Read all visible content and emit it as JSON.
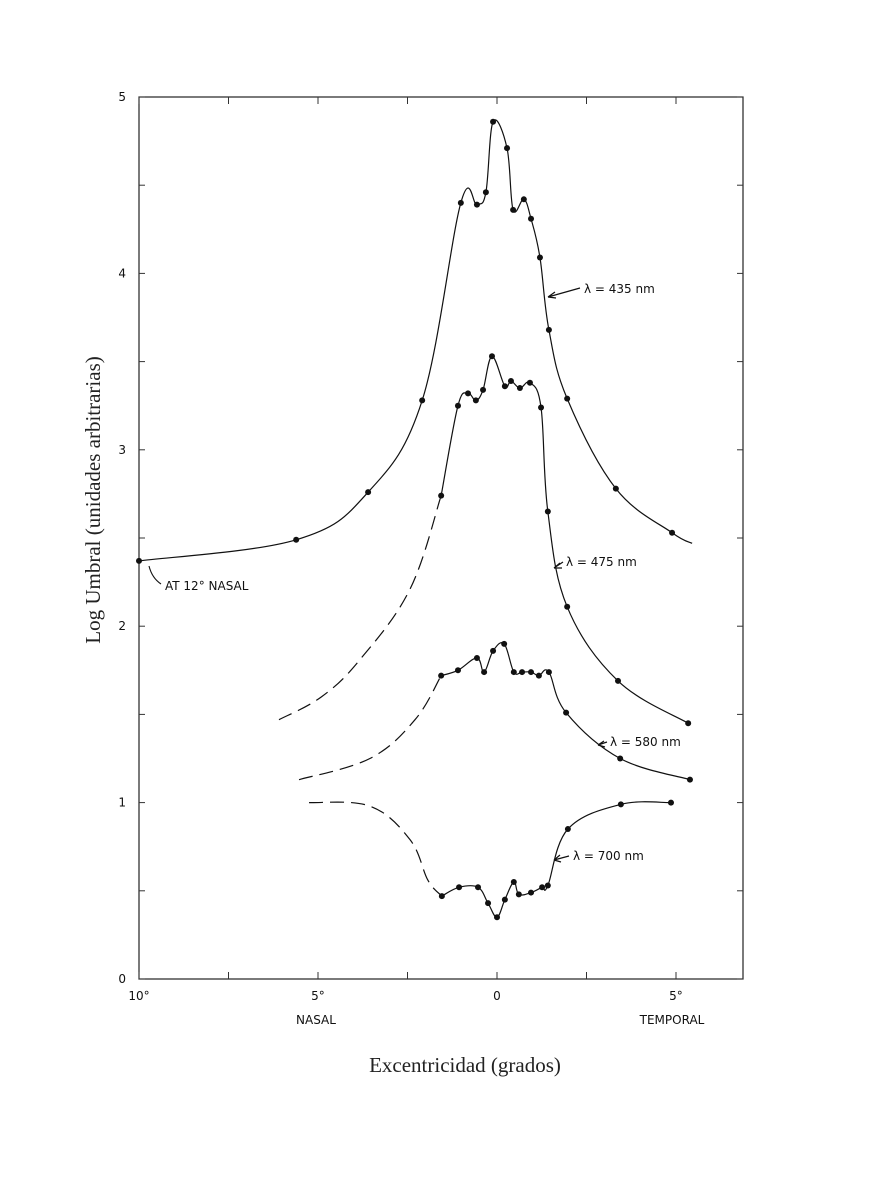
{
  "chart_data": {
    "type": "line",
    "xlabel": "Excentricidad (grados)",
    "ylabel": "Log Umbral (unidades arbitrarias)",
    "xlim": [
      -10,
      6.9
    ],
    "ylim": [
      0,
      5
    ],
    "x_ticks": [
      {
        "value": -10,
        "label": "10°"
      },
      {
        "value": -5,
        "label": "5°"
      },
      {
        "value": 0,
        "label": "0"
      },
      {
        "value": 5,
        "label": "5°"
      }
    ],
    "y_ticks": [
      {
        "value": 0,
        "label": "0"
      },
      {
        "value": 1,
        "label": "1"
      },
      {
        "value": 2,
        "label": "2"
      },
      {
        "value": 3,
        "label": "3"
      },
      {
        "value": 4,
        "label": "4"
      },
      {
        "value": 5,
        "label": "5"
      }
    ],
    "x_side_labels": {
      "left": "NASAL",
      "right": "TEMPORAL"
    },
    "grid": false,
    "annotation": {
      "text": "AT 12° NASAL",
      "x": -10,
      "y": 2.37
    },
    "series": [
      {
        "name": "λ = 435 nm",
        "points": [
          [
            -10.0,
            2.37
          ],
          [
            -5.61,
            2.49
          ],
          [
            -3.6,
            2.76
          ],
          [
            -2.09,
            3.28
          ],
          [
            -1.01,
            4.4
          ],
          [
            -0.56,
            4.39
          ],
          [
            -0.31,
            4.46
          ],
          [
            -0.11,
            4.86
          ],
          [
            0.28,
            4.71
          ],
          [
            0.45,
            4.36
          ],
          [
            0.75,
            4.42
          ],
          [
            0.95,
            4.31
          ],
          [
            1.2,
            4.09
          ],
          [
            1.45,
            3.68
          ],
          [
            1.96,
            3.29
          ],
          [
            3.32,
            2.78
          ],
          [
            4.89,
            2.53
          ]
        ],
        "curve_end": [
          5.45,
          2.47
        ],
        "dashed": []
      },
      {
        "name": "λ = 475 nm",
        "points": [
          [
            -1.56,
            2.74
          ],
          [
            -1.09,
            3.25
          ],
          [
            -0.81,
            3.32
          ],
          [
            -0.59,
            3.28
          ],
          [
            -0.39,
            3.34
          ],
          [
            -0.14,
            3.53
          ],
          [
            0.22,
            3.36
          ],
          [
            0.39,
            3.39
          ],
          [
            0.64,
            3.35
          ],
          [
            0.92,
            3.38
          ],
          [
            1.23,
            3.24
          ],
          [
            1.42,
            2.65
          ],
          [
            1.96,
            2.11
          ],
          [
            3.38,
            1.69
          ],
          [
            5.34,
            1.45
          ]
        ],
        "curve_end": null,
        "dashed": [
          [
            -6.09,
            1.47
          ],
          [
            -4.9,
            1.6
          ],
          [
            -3.83,
            1.81
          ],
          [
            -2.43,
            2.21
          ],
          [
            -1.56,
            2.74
          ]
        ]
      },
      {
        "name": "λ = 580 nm",
        "points": [
          [
            -1.56,
            1.72
          ],
          [
            -1.09,
            1.75
          ],
          [
            -0.56,
            1.82
          ],
          [
            -0.36,
            1.74
          ],
          [
            -0.11,
            1.86
          ],
          [
            0.2,
            1.9
          ],
          [
            0.47,
            1.74
          ],
          [
            0.7,
            1.74
          ],
          [
            0.95,
            1.74
          ],
          [
            1.17,
            1.72
          ],
          [
            1.45,
            1.74
          ],
          [
            1.93,
            1.51
          ],
          [
            3.44,
            1.25
          ],
          [
            5.39,
            1.13
          ]
        ],
        "curve_end": null,
        "dashed": [
          [
            -5.53,
            1.13
          ],
          [
            -3.55,
            1.25
          ],
          [
            -2.29,
            1.47
          ],
          [
            -1.56,
            1.72
          ]
        ]
      },
      {
        "name": "λ = 700 nm",
        "points": [
          [
            -1.54,
            0.47
          ],
          [
            -1.06,
            0.52
          ],
          [
            -0.53,
            0.52
          ],
          [
            -0.25,
            0.43
          ],
          [
            0.0,
            0.35
          ],
          [
            0.22,
            0.45
          ],
          [
            0.47,
            0.55
          ],
          [
            0.61,
            0.48
          ],
          [
            0.95,
            0.49
          ],
          [
            1.26,
            0.52
          ],
          [
            1.42,
            0.53
          ],
          [
            1.98,
            0.85
          ],
          [
            3.46,
            0.99
          ],
          [
            4.86,
            1.0
          ]
        ],
        "curve_end": null,
        "dashed": [
          [
            -5.25,
            1.0
          ],
          [
            -3.55,
            0.98
          ],
          [
            -2.43,
            0.79
          ],
          [
            -1.93,
            0.56
          ],
          [
            -1.54,
            0.47
          ]
        ]
      }
    ]
  }
}
